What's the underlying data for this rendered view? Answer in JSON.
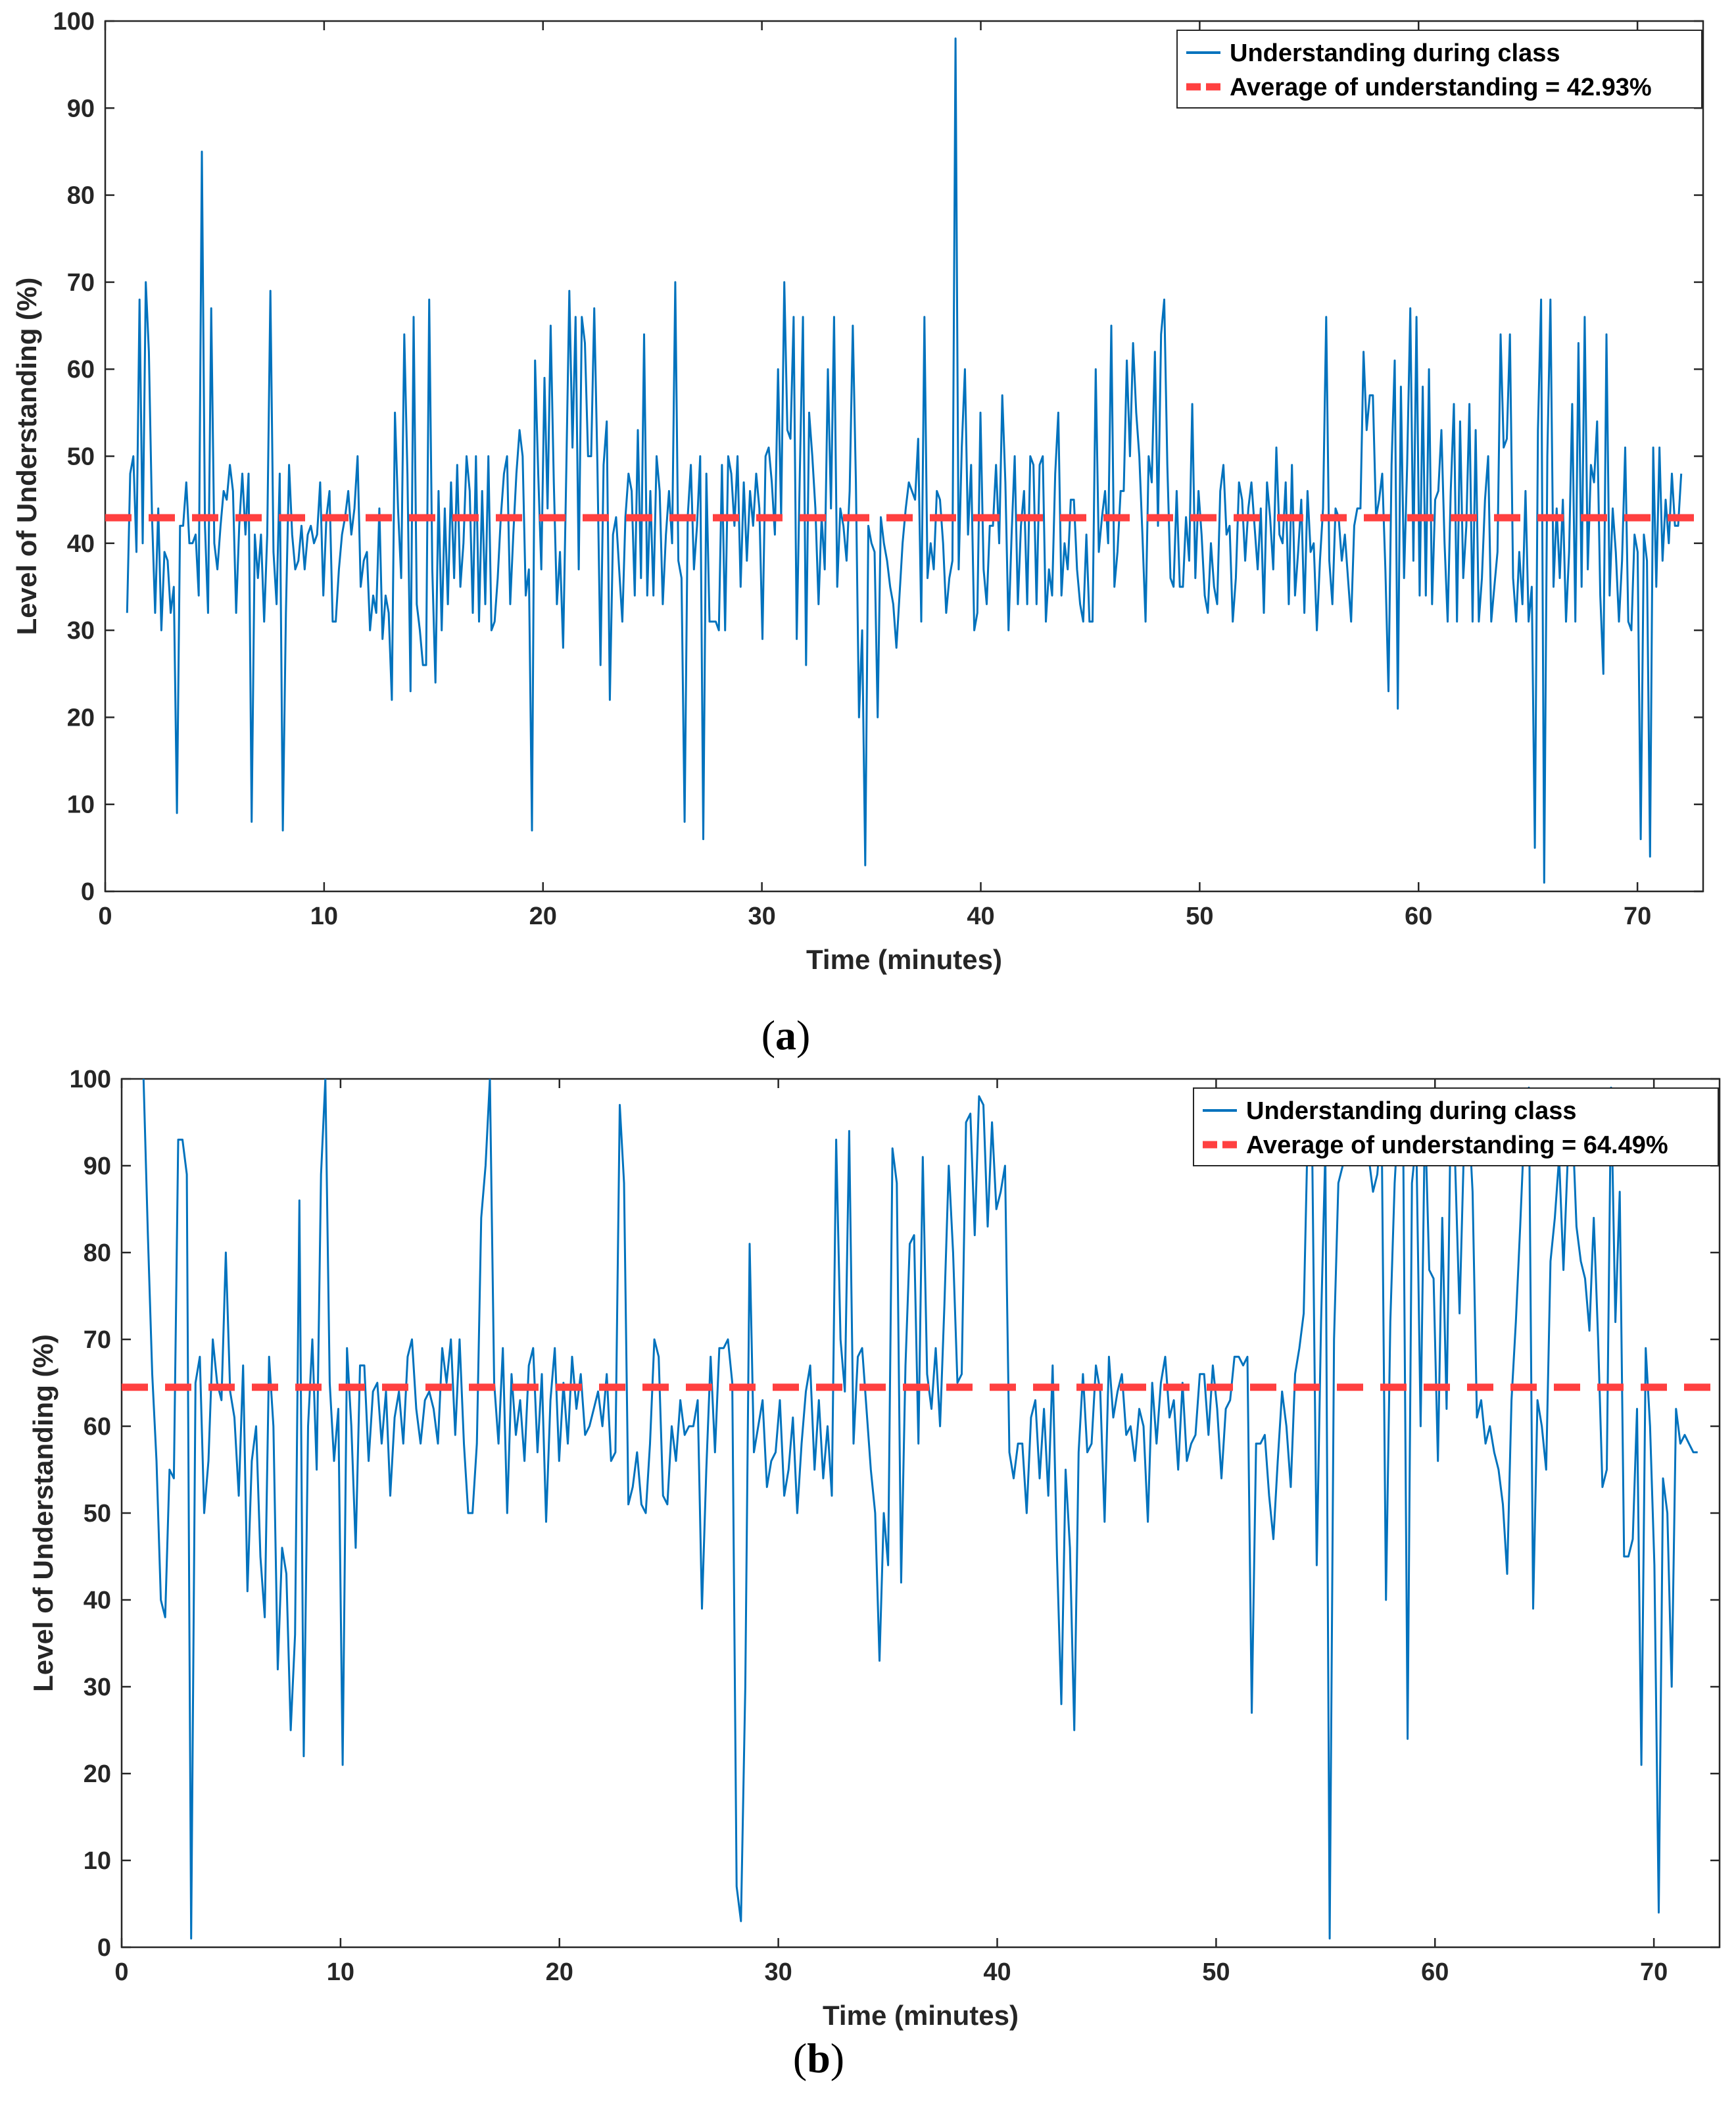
{
  "chart_data": [
    {
      "type": "line",
      "caption_letter": "a",
      "xlabel": "Time (minutes)",
      "ylabel": "Level of Understanding (%)",
      "xlim": [
        0,
        73
      ],
      "ylim": [
        0,
        100
      ],
      "xticks": [
        0,
        10,
        20,
        30,
        40,
        50,
        60,
        70
      ],
      "yticks": [
        0,
        10,
        20,
        30,
        40,
        50,
        60,
        70,
        80,
        90,
        100
      ],
      "legend_position": "top-right",
      "series": [
        {
          "name": "Understanding during class",
          "kind": "line",
          "color": "#0072BD",
          "x_start": 1,
          "x_end": 72,
          "values": [
            32,
            48,
            50,
            39,
            68,
            40,
            70,
            62,
            43,
            32,
            44,
            30,
            39,
            38,
            32,
            35,
            9,
            42,
            42,
            47,
            40,
            40,
            41,
            34,
            85,
            42,
            32,
            67,
            40,
            37,
            42,
            46,
            45,
            49,
            46,
            32,
            42,
            48,
            41,
            48,
            8,
            41,
            36,
            41,
            31,
            41,
            69,
            39,
            33,
            48,
            7,
            32,
            49,
            41,
            37,
            38,
            42,
            37,
            41,
            42,
            40,
            41,
            47,
            34,
            43,
            46,
            31,
            31,
            37,
            41,
            43,
            46,
            41,
            44,
            50,
            35,
            38,
            39,
            30,
            34,
            32,
            44,
            29,
            34,
            32,
            22,
            55,
            44,
            36,
            64,
            48,
            23,
            66,
            33,
            30,
            26,
            26,
            68,
            37,
            24,
            46,
            30,
            44,
            33,
            47,
            36,
            49,
            35,
            40,
            50,
            46,
            32,
            50,
            31,
            46,
            33,
            50,
            30,
            31,
            36,
            43,
            48,
            50,
            33,
            41,
            48,
            53,
            50,
            34,
            37,
            7,
            61,
            48,
            37,
            59,
            44,
            65,
            47,
            33,
            39,
            28,
            48,
            69,
            51,
            66,
            37,
            66,
            63,
            50,
            50,
            67,
            49,
            26,
            49,
            54,
            22,
            41,
            43,
            37,
            31,
            43,
            48,
            46,
            34,
            53,
            36,
            64,
            34,
            46,
            34,
            50,
            46,
            33,
            41,
            46,
            40,
            70,
            38,
            36,
            8,
            43,
            49,
            37,
            42,
            50,
            6,
            48,
            31,
            31,
            31,
            30,
            49,
            30,
            50,
            48,
            42,
            50,
            35,
            47,
            38,
            46,
            42,
            48,
            44,
            29,
            50,
            51,
            47,
            41,
            60,
            43,
            70,
            53,
            52,
            66,
            29,
            48,
            66,
            26,
            55,
            50,
            44,
            33,
            43,
            37,
            60,
            44,
            66,
            35,
            44,
            42,
            38,
            46,
            65,
            47,
            20,
            30,
            3,
            42,
            40,
            39,
            20,
            43,
            40,
            38,
            35,
            33,
            28,
            34,
            40,
            44,
            47,
            46,
            45,
            52,
            31,
            66,
            36,
            40,
            37,
            46,
            45,
            40,
            32,
            36,
            38,
            98,
            37,
            51,
            60,
            41,
            49,
            30,
            32,
            55,
            37,
            33,
            42,
            42,
            49,
            40,
            57,
            47,
            30,
            41,
            50,
            33,
            42,
            46,
            33,
            50,
            49,
            33,
            49,
            50,
            31,
            37,
            34,
            48,
            55,
            34,
            40,
            37,
            45,
            45,
            37,
            33,
            31,
            41,
            31,
            31,
            60,
            39,
            43,
            46,
            40,
            65,
            35,
            39,
            46,
            46,
            61,
            50,
            63,
            55,
            50,
            41,
            31,
            50,
            47,
            62,
            42,
            64,
            68,
            49,
            36,
            35,
            46,
            35,
            35,
            43,
            38,
            56,
            36,
            46,
            41,
            34,
            32,
            40,
            35,
            33,
            46,
            49,
            41,
            42,
            31,
            36,
            47,
            45,
            38,
            44,
            47,
            42,
            37,
            44,
            32,
            47,
            43,
            37,
            51,
            41,
            40,
            47,
            33,
            49,
            34,
            39,
            45,
            32,
            46,
            39,
            40,
            30,
            38,
            44,
            66,
            38,
            33,
            44,
            43,
            38,
            41,
            36,
            31,
            42,
            44,
            44,
            62,
            53,
            57,
            57,
            43,
            45,
            48,
            37,
            23,
            49,
            61,
            21,
            58,
            36,
            49,
            67,
            38,
            66,
            34,
            58,
            34,
            60,
            33,
            45,
            46,
            53,
            40,
            31,
            46,
            56,
            31,
            54,
            36,
            42,
            56,
            31,
            53,
            31,
            36,
            45,
            50,
            31,
            35,
            39,
            64,
            51,
            52,
            64,
            36,
            31,
            39,
            33,
            46,
            31,
            35,
            5,
            53,
            68,
            1,
            50,
            68,
            35,
            44,
            36,
            45,
            31,
            39,
            56,
            31,
            63,
            35,
            66,
            37,
            49,
            47,
            54,
            34,
            25,
            64,
            34,
            44,
            39,
            31,
            38,
            51,
            31,
            30,
            41,
            39,
            6,
            41,
            38,
            4,
            51,
            35,
            51,
            38,
            45,
            40,
            48,
            42,
            42,
            48
          ]
        },
        {
          "name": "Average of understanding = 42.93%",
          "kind": "hline",
          "color": "#ff4040",
          "value": 42.93
        }
      ]
    },
    {
      "type": "line",
      "caption_letter": "b",
      "xlabel": "Time (minutes)",
      "ylabel": "Level of Understanding (%)",
      "xlim": [
        0,
        73
      ],
      "ylim": [
        0,
        100
      ],
      "xticks": [
        0,
        10,
        20,
        30,
        40,
        50,
        60,
        70
      ],
      "yticks": [
        0,
        10,
        20,
        30,
        40,
        50,
        60,
        70,
        80,
        90,
        100
      ],
      "legend_position": "top-right",
      "series": [
        {
          "name": "Understanding during class",
          "kind": "line",
          "color": "#0072BD",
          "x_start": 1,
          "x_end": 72,
          "values": [
            100,
            82,
            66,
            56,
            40,
            38,
            55,
            54,
            93,
            93,
            89,
            1,
            65,
            68,
            50,
            56,
            70,
            65,
            63,
            80,
            64,
            61,
            52,
            67,
            41,
            56,
            60,
            45,
            38,
            68,
            60,
            32,
            46,
            43,
            25,
            36,
            86,
            22,
            60,
            70,
            55,
            89,
            100,
            65,
            56,
            62,
            21,
            69,
            60,
            46,
            67,
            67,
            56,
            64,
            65,
            58,
            64,
            52,
            61,
            64,
            58,
            68,
            70,
            62,
            58,
            63,
            64,
            62,
            58,
            69,
            65,
            70,
            59,
            70,
            58,
            50,
            50,
            58,
            84,
            90,
            100,
            65,
            58,
            69,
            50,
            66,
            59,
            63,
            56,
            67,
            69,
            57,
            66,
            49,
            63,
            69,
            56,
            65,
            58,
            68,
            62,
            66,
            59,
            60,
            62,
            64,
            60,
            66,
            56,
            57,
            97,
            88,
            51,
            53,
            57,
            51,
            50,
            58,
            70,
            68,
            52,
            51,
            60,
            56,
            63,
            59,
            60,
            60,
            63,
            39,
            55,
            68,
            57,
            69,
            69,
            70,
            65,
            7,
            3,
            30,
            81,
            57,
            60,
            63,
            53,
            56,
            57,
            63,
            52,
            55,
            61,
            50,
            58,
            64,
            67,
            55,
            63,
            54,
            60,
            52,
            93,
            70,
            64,
            94,
            58,
            68,
            69,
            62,
            55,
            50,
            33,
            50,
            44,
            92,
            88,
            42,
            67,
            81,
            82,
            58,
            91,
            66,
            62,
            69,
            60,
            74,
            90,
            80,
            65,
            66,
            95,
            96,
            82,
            98,
            97,
            83,
            95,
            85,
            87,
            90,
            57,
            54,
            58,
            58,
            50,
            61,
            63,
            54,
            62,
            52,
            67,
            45,
            28,
            55,
            46,
            25,
            57,
            66,
            57,
            58,
            67,
            64,
            49,
            68,
            61,
            64,
            66,
            59,
            60,
            56,
            62,
            60,
            49,
            65,
            58,
            65,
            68,
            61,
            63,
            55,
            65,
            56,
            58,
            59,
            66,
            66,
            59,
            67,
            62,
            54,
            62,
            63,
            68,
            68,
            67,
            68,
            27,
            58,
            58,
            59,
            52,
            47,
            56,
            64,
            60,
            53,
            66,
            69,
            73,
            96,
            90,
            44,
            72,
            92,
            1,
            70,
            88,
            90,
            98,
            96,
            92,
            97,
            94,
            91,
            87,
            89,
            95,
            40,
            72,
            88,
            97,
            92,
            24,
            88,
            93,
            60,
            96,
            78,
            77,
            56,
            84,
            62,
            98,
            90,
            73,
            92,
            97,
            87,
            61,
            63,
            58,
            60,
            57,
            55,
            51,
            43,
            63,
            72,
            83,
            95,
            99,
            39,
            63,
            60,
            55,
            79,
            84,
            91,
            78,
            91,
            96,
            83,
            79,
            77,
            71,
            84,
            70,
            53,
            55,
            99,
            72,
            87,
            45,
            45,
            47,
            62,
            21,
            69,
            60,
            44,
            4,
            54,
            50,
            30,
            62,
            58,
            59,
            58,
            57,
            57
          ]
        },
        {
          "name": "Average of understanding = 64.49%",
          "kind": "hline",
          "color": "#ff4040",
          "value": 64.49
        }
      ]
    }
  ]
}
